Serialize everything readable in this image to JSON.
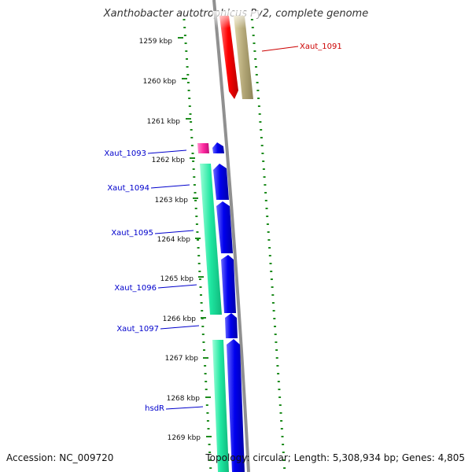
{
  "title": "Xanthobacter autotrophicus Py2, complete genome",
  "footer": {
    "accession": "Accession: NC_009720",
    "summary": "Topology: circular; Length: 5,308,934 bp; Genes: 4,805"
  },
  "colors": {
    "backbone": "#8c8c8c",
    "ruler_tick": "#1e8c1e",
    "label_forward": "#cc0000",
    "label_reverse": "#0000cc",
    "cds_blue": "#0000e6",
    "cds_red": "#ff0000",
    "cds_olive": "#b4a878",
    "cds_pink": "#ff2aa0",
    "cds_green": "#1ee6a0"
  },
  "ruler": {
    "unit": "kbp",
    "labels": [
      "1259 kbp",
      "1260 kbp",
      "1261 kbp",
      "1262 kbp",
      "1263 kbp",
      "1264 kbp",
      "1265 kbp",
      "1266 kbp",
      "1267 kbp",
      "1268 kbp",
      "1269 kbp"
    ]
  },
  "gene_labels": [
    {
      "name": "Xaut_1091",
      "strand": "forward"
    },
    {
      "name": "Xaut_1093",
      "strand": "reverse"
    },
    {
      "name": "Xaut_1094",
      "strand": "reverse"
    },
    {
      "name": "Xaut_1095",
      "strand": "reverse"
    },
    {
      "name": "Xaut_1096",
      "strand": "reverse"
    },
    {
      "name": "Xaut_1097",
      "strand": "reverse"
    },
    {
      "name": "hsdR",
      "strand": "reverse"
    }
  ]
}
